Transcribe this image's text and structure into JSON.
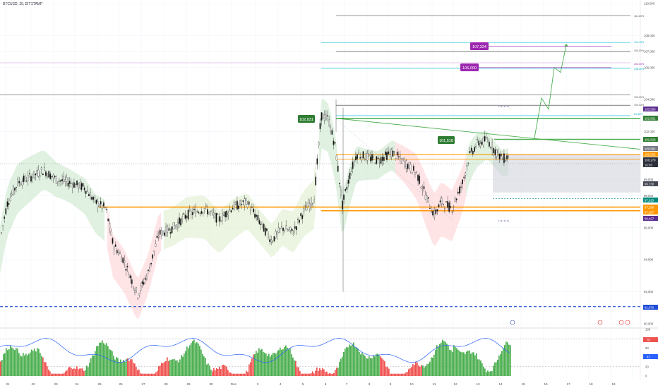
{
  "header": {
    "symbol": "BTCUSD, 30, BITSTAMP"
  },
  "colors": {
    "up": "#26a69a",
    "down": "#ef5350",
    "green_bar": "#4caf50",
    "orange": "#ff9800",
    "purple": "#9c27b0",
    "teal": "#00bcd4",
    "blue_dash": "#1e4bd8",
    "rsi_line": "#2962ff",
    "green_label": "#2e7d32"
  },
  "price_axis": {
    "min": 89.5,
    "max": 110.2,
    "ticks": [
      "110,000",
      "108,000",
      "107,000",
      "106,000",
      "104,000",
      "102,000",
      "100,000",
      "99,000",
      "98,000",
      "96,000",
      "94,000",
      "92,000",
      "90,000"
    ],
    "tick_values": [
      110,
      108,
      107,
      106,
      104,
      102,
      100,
      99,
      98,
      96,
      94,
      92,
      90
    ]
  },
  "x_axis": {
    "labels": [
      "21",
      "22",
      "23",
      "24",
      "25",
      "26",
      "27",
      "28",
      "29",
      "30",
      "Dec",
      "3",
      "4",
      "5",
      "6",
      "7",
      "8",
      "9",
      "10",
      "11",
      "12",
      "13",
      "14",
      "15",
      "16",
      "17",
      "18",
      "19"
    ]
  },
  "price_labels": {
    "top": "103,550",
    "r1": "102,831",
    "r2": "101,518",
    "cur1": "100,982",
    "cur2": "100,566",
    "cur3": "100,279",
    "timer": "16:03",
    "mid": "99,730",
    "s1": "97,815",
    "s2": "97,290",
    "s3": "97,057",
    "low": "96,427",
    "bottom": "91,070"
  },
  "annotations": {
    "left_box": "102,831",
    "mid_box": "101,518",
    "target1": "106,000",
    "target2": "107,334"
  },
  "fib_labels": [
    "161.80%",
    "141.40%",
    "100.00%",
    "61.80%",
    "200.00%",
    "138.20%",
    "100.00%",
    "100.00%",
    "100.00%"
  ],
  "oscillator": {
    "ticks": [
      "100",
      "80",
      "60",
      "40",
      "20",
      "0"
    ],
    "tick_values": [
      100,
      80,
      60,
      40,
      20,
      0
    ],
    "value_red": "70",
    "value_blue": "41"
  },
  "chart_data": {
    "type": "candlestick",
    "price_series_low_high": [
      [
        95.0,
        96.5
      ],
      [
        96.0,
        98.8
      ],
      [
        98.5,
        99.6
      ],
      [
        99.0,
        99.4
      ],
      [
        97.8,
        98.5
      ],
      [
        94.1,
        96.2
      ],
      [
        91.7,
        93.8
      ],
      [
        95.5,
        96.5
      ],
      [
        95.9,
        97.5
      ],
      [
        96.5,
        97.6
      ],
      [
        96.3,
        97.9
      ],
      [
        96.0,
        97.4
      ],
      [
        95.1,
        96.0
      ],
      [
        96.5,
        97.8
      ],
      [
        102.3,
        103.8
      ],
      [
        97.1,
        99.5
      ],
      [
        100.1,
        101.3
      ],
      [
        99.3,
        100.6
      ],
      [
        97.8,
        99.0
      ],
      [
        96.5,
        98.3
      ],
      [
        97.5,
        98.9
      ],
      [
        100.9,
        102.1
      ],
      [
        100.0,
        100.8
      ]
    ],
    "key_levels": [
      {
        "value": 103.55,
        "label": "103,550"
      },
      {
        "value": 102.83,
        "label": "102,831"
      },
      {
        "value": 101.52,
        "label": "101,518"
      },
      {
        "value": 100.28,
        "label": "100,279"
      },
      {
        "value": 97.29,
        "label": "97,290"
      },
      {
        "value": 97.06,
        "label": "97,057"
      },
      {
        "value": 91.07,
        "label": "91,070"
      }
    ],
    "targets": [
      106.0,
      107.334
    ],
    "oscillator_range": [
      0,
      100
    ]
  }
}
